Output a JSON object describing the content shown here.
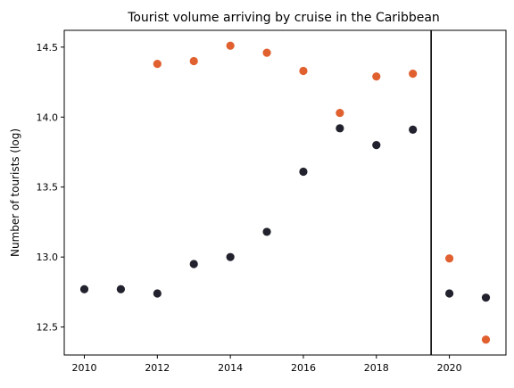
{
  "chart_data": {
    "type": "scatter",
    "title": "Tourist volume arriving by cruise in the Caribbean",
    "xlabel": "",
    "ylabel": "Number of tourists (log)",
    "xlim": [
      2009.45,
      2021.55
    ],
    "ylim": [
      12.3,
      14.62
    ],
    "x_ticks": [
      2010,
      2012,
      2014,
      2016,
      2018,
      2020
    ],
    "y_ticks": [
      12.5,
      13.0,
      13.5,
      14.0,
      14.5
    ],
    "y_tick_labels": [
      "12.5",
      "13.0",
      "13.5",
      "14.0",
      "14.5"
    ],
    "grid": false,
    "vertical_line_x": 2019.5,
    "series": [
      {
        "color": "#e06030",
        "points": [
          {
            "x": 2012,
            "y": 14.38
          },
          {
            "x": 2013,
            "y": 14.4
          },
          {
            "x": 2014,
            "y": 14.51
          },
          {
            "x": 2015,
            "y": 14.46
          },
          {
            "x": 2016,
            "y": 14.33
          },
          {
            "x": 2017,
            "y": 14.03
          },
          {
            "x": 2018,
            "y": 14.29
          },
          {
            "x": 2019,
            "y": 14.31
          },
          {
            "x": 2020,
            "y": 12.99
          },
          {
            "x": 2021,
            "y": 12.41
          }
        ]
      },
      {
        "color": "#22222e",
        "points": [
          {
            "x": 2010,
            "y": 12.77
          },
          {
            "x": 2011,
            "y": 12.77
          },
          {
            "x": 2012,
            "y": 12.74
          },
          {
            "x": 2013,
            "y": 12.95
          },
          {
            "x": 2014,
            "y": 13.0
          },
          {
            "x": 2015,
            "y": 13.18
          },
          {
            "x": 2016,
            "y": 13.61
          },
          {
            "x": 2017,
            "y": 13.92
          },
          {
            "x": 2018,
            "y": 13.8
          },
          {
            "x": 2019,
            "y": 13.91
          },
          {
            "x": 2020,
            "y": 12.74
          },
          {
            "x": 2021,
            "y": 12.71
          }
        ]
      }
    ]
  }
}
